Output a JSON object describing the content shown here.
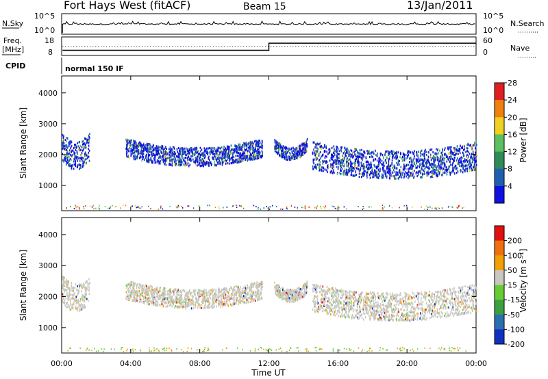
{
  "header": {
    "title": "Fort Hays West (fitACF)",
    "beam": "Beam 15",
    "date": "13/Jan/2011"
  },
  "top_panels": {
    "nsky_label": "N.Sky",
    "nsky_ticks": [
      "10^5",
      "10^0"
    ],
    "nsearch_label": "N.Search",
    "nsearch_ticks": [
      "10^5",
      "10^0"
    ],
    "freq_label": "Freq.",
    "freq_unit": "[MHz]",
    "freq_ticks": [
      "18",
      "8"
    ],
    "nave_label": "Nave",
    "nave_ticks": [
      "60",
      "0"
    ],
    "cpid_label": "CPID",
    "cpid_value": "normal 150 IF"
  },
  "chart_data": [
    {
      "type": "heatmap",
      "parameter": "Power",
      "ylabel": "Slant Range [km]",
      "xlabel": "",
      "x_ticks": [
        "00:00",
        "04:00",
        "08:00",
        "12:00",
        "16:00",
        "20:00",
        "00:00"
      ],
      "xlim_hours": [
        0,
        24
      ],
      "y_ticks": [
        1000,
        2000,
        3000,
        4000
      ],
      "ylim_km": [
        180,
        4550
      ],
      "colorbar": {
        "label": "Power [dB]",
        "ticks": [
          "4",
          "8",
          "12",
          "16",
          "20",
          "24",
          "28"
        ],
        "colors": [
          "#1010e0",
          "#1f5fb0",
          "#2e8b57",
          "#5cc060",
          "#f0d020",
          "#f08010",
          "#e02020"
        ]
      },
      "scatter_bands": [
        {
          "t_start": 0.0,
          "t_end": 1.6,
          "range_center": 2000,
          "range_halfwidth": 450,
          "level": "mixed"
        },
        {
          "t_start": 3.7,
          "t_end": 11.6,
          "range_center": 1950,
          "range_halfwidth": 300,
          "level": "low"
        },
        {
          "t_start": 12.3,
          "t_end": 14.2,
          "range_center": 2050,
          "range_halfwidth": 200,
          "level": "low"
        },
        {
          "t_start": 14.5,
          "t_end": 24.0,
          "range_center": 1700,
          "range_halfwidth": 450,
          "level": "mixed"
        }
      ]
    },
    {
      "type": "heatmap",
      "parameter": "Velocity",
      "ylabel": "Slant Range [km]",
      "xlabel": "Time UT",
      "x_ticks": [
        "00:00",
        "04:00",
        "08:00",
        "12:00",
        "16:00",
        "20:00",
        "00:00"
      ],
      "xlim_hours": [
        0,
        24
      ],
      "y_ticks": [
        1000,
        2000,
        3000,
        4000
      ],
      "ylim_km": [
        180,
        4550
      ],
      "colorbar": {
        "label": "Velocity [m s⁻¹]",
        "ticks": [
          "200",
          "100",
          "50",
          "15",
          "-15",
          "-50",
          "-100",
          "-200"
        ],
        "colors": [
          "#1030c0",
          "#2a6fb0",
          "#3aa040",
          "#66cc33",
          "#c8c8c0",
          "#f0a000",
          "#f07010",
          "#e01010"
        ]
      },
      "scatter_bands": [
        {
          "t_start": 0.0,
          "t_end": 1.6,
          "range_center": 2000,
          "range_halfwidth": 450,
          "level": "ground"
        },
        {
          "t_start": 3.7,
          "t_end": 11.6,
          "range_center": 1950,
          "range_halfwidth": 300,
          "level": "ground"
        },
        {
          "t_start": 12.3,
          "t_end": 14.2,
          "range_center": 2050,
          "range_halfwidth": 200,
          "level": "ground"
        },
        {
          "t_start": 14.5,
          "t_end": 24.0,
          "range_center": 1700,
          "range_halfwidth": 450,
          "level": "ground"
        }
      ]
    }
  ]
}
